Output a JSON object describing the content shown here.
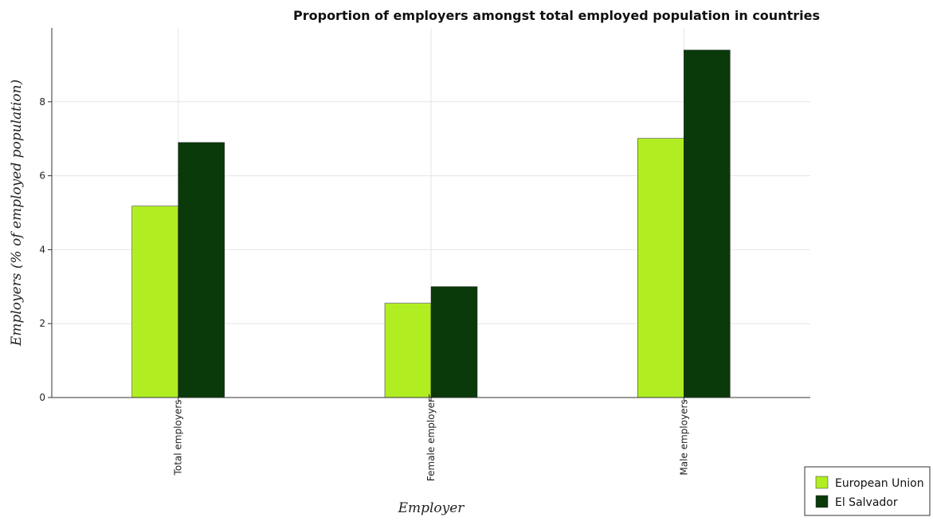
{
  "chart_data": {
    "type": "bar",
    "title": "Proportion of employers amongst total employed population in countries",
    "xlabel": "Employer",
    "ylabel": "Employers (% of employed population)",
    "categories": [
      "Total employers",
      "Female employers",
      "Male employers"
    ],
    "ylim": [
      0,
      10
    ],
    "yticks": [
      "0",
      "2",
      "4",
      "6",
      "8"
    ],
    "grid": true,
    "legend_position": "bottom-right",
    "series": [
      {
        "name": "European Union",
        "color": "#b0ee22",
        "values": [
          5.18,
          2.55,
          7.01
        ]
      },
      {
        "name": "El Salvador",
        "color": "#0a3a0a",
        "values": [
          6.9,
          3.0,
          9.4
        ]
      }
    ]
  }
}
